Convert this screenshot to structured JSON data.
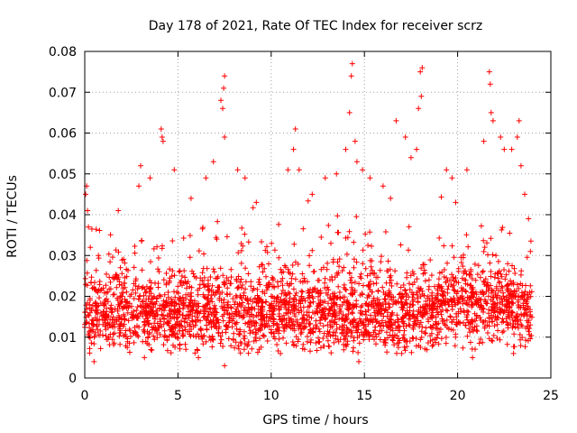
{
  "chart_data": {
    "type": "scatter",
    "title": "Day 178 of 2021, Rate Of TEC Index for receiver scrz",
    "xlabel": "GPS time / hours",
    "ylabel": "ROTI / TECUs",
    "xlim": [
      0,
      25
    ],
    "ylim": [
      0,
      0.08
    ],
    "xticks": [
      0,
      5,
      10,
      15,
      20,
      25
    ],
    "yticks": [
      0,
      0.01,
      0.02,
      0.03,
      0.04,
      0.05,
      0.06,
      0.07,
      0.08
    ],
    "xtick_labels": [
      "0",
      "5",
      "10",
      "15",
      "20",
      "25"
    ],
    "ytick_labels": [
      "0",
      "0.01",
      "0.02",
      "0.03",
      "0.04",
      "0.05",
      "0.06",
      "0.07",
      "0.08"
    ],
    "grid": true,
    "marker": "plus",
    "color": "#ff0000",
    "series": [
      {
        "points": [
          [
            0.05,
            0.045
          ],
          [
            0.1,
            0.047
          ],
          [
            0.15,
            0.041
          ],
          [
            0.2,
            0.037
          ],
          [
            0.3,
            0.032
          ],
          [
            2.9,
            0.047
          ],
          [
            3.0,
            0.052
          ],
          [
            3.5,
            0.049
          ],
          [
            4.1,
            0.061
          ],
          [
            4.15,
            0.059
          ],
          [
            4.2,
            0.058
          ],
          [
            4.8,
            0.051
          ],
          [
            6.5,
            0.049
          ],
          [
            6.9,
            0.053
          ],
          [
            7.3,
            0.068
          ],
          [
            7.4,
            0.066
          ],
          [
            7.5,
            0.074
          ],
          [
            7.45,
            0.071
          ],
          [
            7.5,
            0.059
          ],
          [
            8.2,
            0.051
          ],
          [
            8.6,
            0.049
          ],
          [
            10.9,
            0.051
          ],
          [
            11.3,
            0.061
          ],
          [
            11.2,
            0.056
          ],
          [
            11.5,
            0.051
          ],
          [
            12.9,
            0.049
          ],
          [
            13.5,
            0.05
          ],
          [
            14.0,
            0.056
          ],
          [
            14.2,
            0.065
          ],
          [
            14.3,
            0.074
          ],
          [
            14.35,
            0.077
          ],
          [
            14.5,
            0.058
          ],
          [
            14.6,
            0.053
          ],
          [
            14.9,
            0.051
          ],
          [
            15.3,
            0.049
          ],
          [
            16.0,
            0.047
          ],
          [
            16.7,
            0.063
          ],
          [
            17.2,
            0.059
          ],
          [
            17.5,
            0.054
          ],
          [
            17.8,
            0.056
          ],
          [
            17.9,
            0.066
          ],
          [
            18.0,
            0.075
          ],
          [
            18.1,
            0.076
          ],
          [
            18.05,
            0.069
          ],
          [
            19.4,
            0.051
          ],
          [
            19.7,
            0.049
          ],
          [
            20.5,
            0.051
          ],
          [
            21.4,
            0.058
          ],
          [
            21.7,
            0.075
          ],
          [
            21.75,
            0.072
          ],
          [
            21.8,
            0.065
          ],
          [
            21.9,
            0.063
          ],
          [
            22.3,
            0.059
          ],
          [
            22.5,
            0.056
          ],
          [
            22.9,
            0.056
          ],
          [
            23.2,
            0.059
          ],
          [
            23.3,
            0.063
          ],
          [
            23.4,
            0.052
          ],
          [
            23.6,
            0.045
          ],
          [
            23.8,
            0.039
          ],
          [
            23.9,
            0.031
          ],
          [
            1.8,
            0.041
          ],
          [
            5.7,
            0.044
          ],
          [
            9.2,
            0.043
          ],
          [
            12.2,
            0.045
          ],
          [
            16.4,
            0.044
          ],
          [
            19.9,
            0.043
          ],
          [
            0.5,
            0.004
          ],
          [
            3.2,
            0.005
          ],
          [
            6.1,
            0.005
          ],
          [
            7.5,
            0.003
          ],
          [
            10.5,
            0.006
          ],
          [
            14.7,
            0.004
          ],
          [
            17.0,
            0.006
          ],
          [
            20.8,
            0.005
          ],
          [
            23.0,
            0.006
          ]
        ]
      }
    ]
  }
}
